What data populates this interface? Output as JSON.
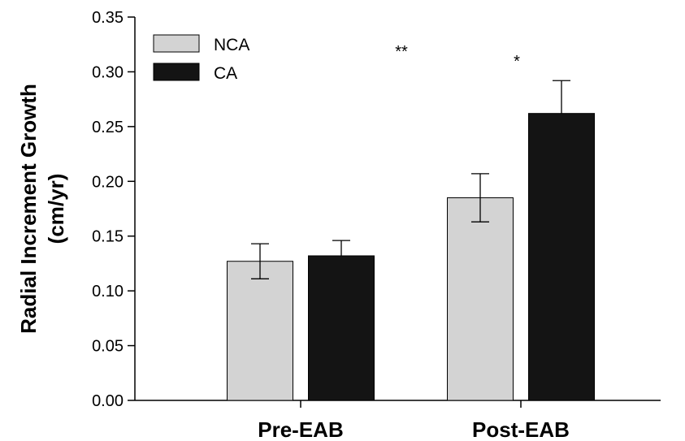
{
  "chart_data": {
    "type": "bar",
    "categories": [
      "Pre-EAB",
      "Post-EAB"
    ],
    "series": [
      {
        "name": "NCA",
        "values": [
          0.127,
          0.185
        ],
        "errors": [
          0.016,
          0.022
        ],
        "color": "#d3d3d3"
      },
      {
        "name": "CA",
        "values": [
          0.132,
          0.262
        ],
        "errors": [
          0.014,
          0.03
        ],
        "color": "#141414"
      }
    ],
    "ylabel_lines": [
      "Radial Increment Growth",
      "(cm/yr)"
    ],
    "ylim": [
      0,
      0.35
    ],
    "yticks": [
      "0.00",
      "0.05",
      "0.10",
      "0.15",
      "0.20",
      "0.25",
      "0.30",
      "0.35"
    ],
    "significance": [
      {
        "category": "Pre-EAB",
        "text": "**"
      },
      {
        "category": "Post-EAB",
        "text": "*"
      }
    ],
    "legend_position": "top-left",
    "grid": false
  }
}
